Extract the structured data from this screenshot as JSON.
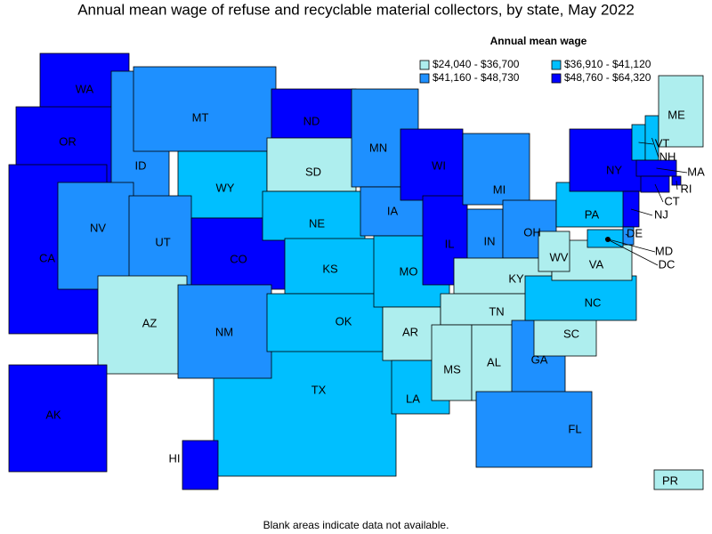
{
  "title": "Annual mean wage of refuse and recyclable material collectors, by state, May 2022",
  "legend": {
    "title": "Annual mean wage",
    "items": [
      {
        "label": "$24,040 - $36,700",
        "color": "#aeeeee"
      },
      {
        "label": "$36,910 - $41,120",
        "color": "#00bfff"
      },
      {
        "label": "$41,160 - $48,730",
        "color": "#1e90ff"
      },
      {
        "label": "$48,760 - $64,320",
        "color": "#0000ff"
      }
    ]
  },
  "states": [
    {
      "label": "TX",
      "color": "#00bfff"
    },
    {
      "label": "WA",
      "color": "#0000ff"
    },
    {
      "label": "OR",
      "color": "#0000ff"
    },
    {
      "label": "CA",
      "color": "#0000ff"
    },
    {
      "label": "ID",
      "color": "#1e90ff"
    },
    {
      "label": "NV",
      "color": "#1e90ff"
    },
    {
      "label": "MT",
      "color": "#1e90ff"
    },
    {
      "label": "WY",
      "color": "#00bfff"
    },
    {
      "label": "UT",
      "color": "#1e90ff"
    },
    {
      "label": "AZ",
      "color": "#aeeeee"
    },
    {
      "label": "CO",
      "color": "#0000ff"
    },
    {
      "label": "NM",
      "color": "#1e90ff"
    },
    {
      "label": "ND",
      "color": "#0000ff"
    },
    {
      "label": "SD",
      "color": "#aeeeee"
    },
    {
      "label": "NE",
      "color": "#00bfff"
    },
    {
      "label": "KS",
      "color": "#00bfff"
    },
    {
      "label": "OK",
      "color": "#00bfff"
    },
    {
      "label": "MN",
      "color": "#1e90ff"
    },
    {
      "label": "IA",
      "color": "#1e90ff"
    },
    {
      "label": "MO",
      "color": "#00bfff"
    },
    {
      "label": "AR",
      "color": "#aeeeee"
    },
    {
      "label": "LA",
      "color": "#00bfff"
    },
    {
      "label": "WI",
      "color": "#0000ff"
    },
    {
      "label": "IL",
      "color": "#0000ff"
    },
    {
      "label": "MI",
      "color": "#1e90ff"
    },
    {
      "label": "IN",
      "color": "#1e90ff"
    },
    {
      "label": "OH",
      "color": "#1e90ff"
    },
    {
      "label": "KY",
      "color": "#aeeeee"
    },
    {
      "label": "TN",
      "color": "#aeeeee"
    },
    {
      "label": "MS",
      "color": "#aeeeee"
    },
    {
      "label": "AL",
      "color": "#aeeeee"
    },
    {
      "label": "GA",
      "color": "#1e90ff"
    },
    {
      "label": "FL",
      "color": "#1e90ff"
    },
    {
      "label": "SC",
      "color": "#aeeeee"
    },
    {
      "label": "NC",
      "color": "#00bfff"
    },
    {
      "label": "VA",
      "color": "#aeeeee"
    },
    {
      "label": "WV",
      "color": "#aeeeee"
    },
    {
      "label": "PA",
      "color": "#00bfff"
    },
    {
      "label": "NY",
      "color": "#0000ff"
    },
    {
      "label": "NJ",
      "color": "#0000ff"
    },
    {
      "label": "DE",
      "color": "#1e90ff"
    },
    {
      "label": "MD",
      "color": "#00bfff"
    },
    {
      "label": "DC"
    },
    {
      "label": "VT",
      "color": "#00bfff"
    },
    {
      "label": "NH",
      "color": "#00bfff"
    },
    {
      "label": "ME",
      "color": "#aeeeee"
    },
    {
      "label": "MA",
      "color": "#0000ff"
    },
    {
      "label": "RI",
      "color": "#0000ff"
    },
    {
      "label": "CT",
      "color": "#0000ff"
    },
    {
      "label": "AK",
      "color": "#0000ff"
    },
    {
      "label": "HI",
      "color": "#0000ff"
    },
    {
      "label": "PR",
      "color": "#aeeeee"
    }
  ],
  "footnote": "Blank areas indicate data not available."
}
